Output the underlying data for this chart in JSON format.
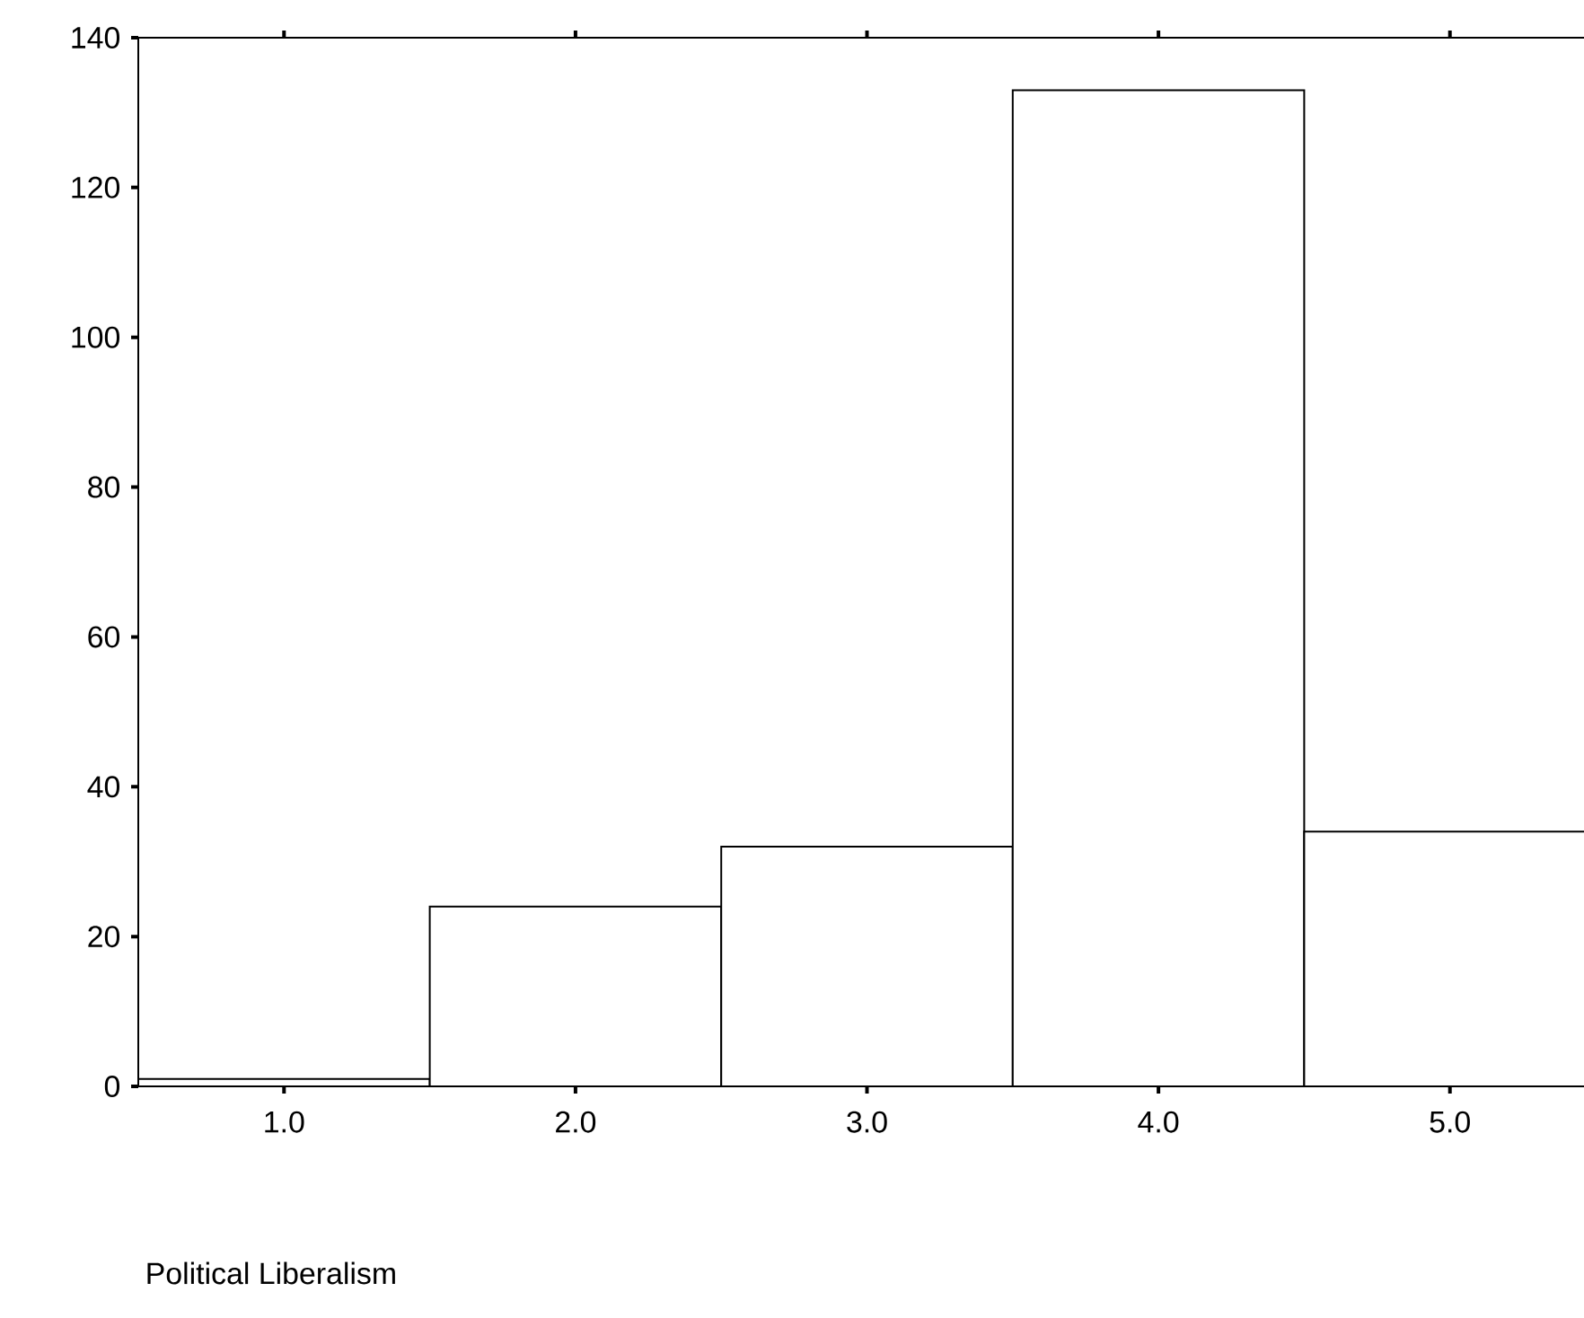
{
  "chart_data": {
    "type": "bar",
    "xlabel": "Political Liberalism",
    "categories": [
      "1.0",
      "2.0",
      "3.0",
      "4.0",
      "5.0"
    ],
    "values": [
      1,
      24,
      32,
      133,
      34
    ],
    "color": "#ffffff",
    "ylim": [
      0,
      140
    ],
    "yticks": [
      0,
      20,
      40,
      60,
      80,
      100,
      120,
      140
    ]
  }
}
